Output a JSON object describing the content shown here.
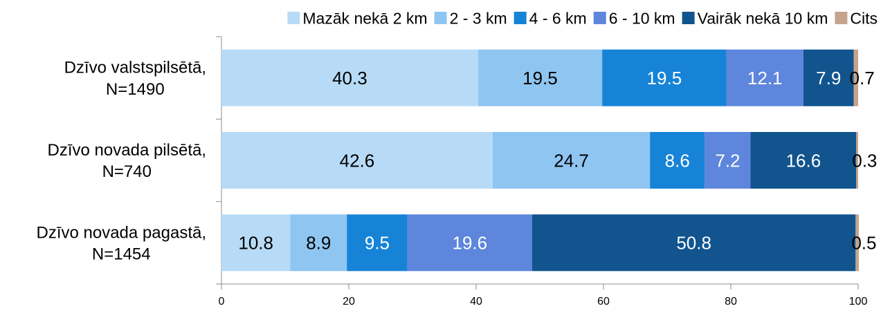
{
  "chart_data": {
    "type": "bar",
    "orientation": "horizontal",
    "stacked": true,
    "title": "",
    "xlabel": "",
    "ylabel": "",
    "xlim": [
      0,
      100
    ],
    "x_ticks": [
      "0",
      "20",
      "40",
      "60",
      "80",
      "100"
    ],
    "grid": false,
    "legend_position": "top",
    "categories": [
      [
        "Dzīvo valstspilsētā,",
        "N=1490"
      ],
      [
        "Dzīvo novada pilsētā,",
        "N=740"
      ],
      [
        "Dzīvo novada pagastā,",
        "N=1454"
      ]
    ],
    "series": [
      {
        "name": "Mazāk nekā 2 km",
        "color": "#b7dbf6",
        "label_color": "#000000",
        "values": [
          40.3,
          42.6,
          10.8
        ],
        "labels": [
          "40.3",
          "42.6",
          "10.8"
        ]
      },
      {
        "name": "2 - 3 km",
        "color": "#8fc5f1",
        "label_color": "#000000",
        "values": [
          19.5,
          24.7,
          8.9
        ],
        "labels": [
          "19.5",
          "24.7",
          "8.9"
        ]
      },
      {
        "name": "4 - 6 km",
        "color": "#1683d6",
        "label_color": "#ffffff",
        "values": [
          19.5,
          8.6,
          9.5
        ],
        "labels": [
          "19.5",
          "8.6",
          "9.5"
        ]
      },
      {
        "name": "6 - 10 km",
        "color": "#5d86dc",
        "label_color": "#ffffff",
        "values": [
          12.1,
          7.2,
          19.6
        ],
        "labels": [
          "12.1",
          "7.2",
          "19.6"
        ]
      },
      {
        "name": "Vairāk nekā 10 km",
        "color": "#11548e",
        "label_color": "#ffffff",
        "values": [
          7.9,
          16.6,
          50.8
        ],
        "labels": [
          "7.9",
          "16.6",
          "50.8"
        ]
      },
      {
        "name": "Cits",
        "color": "#c4a48c",
        "label_color": "#000000",
        "values": [
          0.7,
          0.3,
          0.5
        ],
        "labels": [
          "0.7",
          "0.3",
          "0.5"
        ]
      }
    ]
  }
}
